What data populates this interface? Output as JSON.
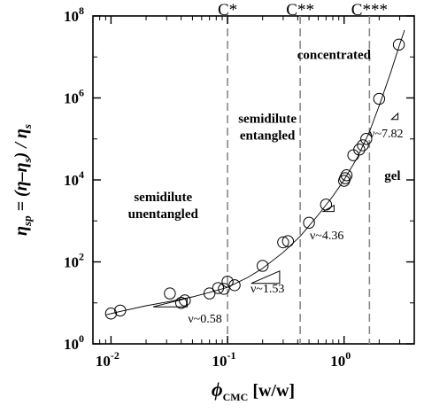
{
  "chart_data": {
    "type": "scatter",
    "x_scale": "log",
    "y_scale": "log",
    "xlim": [
      0.007,
      4
    ],
    "ylim": [
      1,
      100000000
    ],
    "xlabel": {
      "main": "ϕ",
      "sub": "CMC",
      "unit": " [w/w]"
    },
    "ylabel": {
      "part1": "η",
      "part1_sub": "sp",
      "part2": " = (η–η",
      "part2_sub": "s",
      "part3": ") / η",
      "part3_sub": "s"
    },
    "x_ticks": [
      {
        "value": 0.01,
        "base": "10",
        "exp": "-2"
      },
      {
        "value": 0.1,
        "base": "10",
        "exp": "-1"
      },
      {
        "value": 1,
        "base": "10",
        "exp": "0"
      }
    ],
    "y_ticks": [
      {
        "value": 1,
        "base": "10",
        "exp": "0"
      },
      {
        "value": 100,
        "base": "10",
        "exp": "2"
      },
      {
        "value": 10000,
        "base": "10",
        "exp": "4"
      },
      {
        "value": 1000000,
        "base": "10",
        "exp": "6"
      },
      {
        "value": 100000000,
        "base": "10",
        "exp": "8"
      }
    ],
    "critical_lines": [
      {
        "label": "C*",
        "x": 0.1
      },
      {
        "label": "C**",
        "x": 0.42
      },
      {
        "label": "C***",
        "x": 1.65
      }
    ],
    "regions": [
      {
        "lines": [
          "semidilute",
          "unentangled"
        ],
        "x": 0.028,
        "y": 3000,
        "anchor": "middle"
      },
      {
        "lines": [
          "semidilute",
          "entangled"
        ],
        "x": 0.22,
        "y": 250000,
        "anchor": "middle"
      },
      {
        "lines": [
          "concentrated"
        ],
        "x": 0.82,
        "y": 9000000,
        "anchor": "middle"
      },
      {
        "lines": [
          "gel"
        ],
        "x": 2.6,
        "y": 10000,
        "anchor": "middle"
      }
    ],
    "slopes": [
      {
        "label": "ν~0.58",
        "text_x": 0.064,
        "text_y": 3.3,
        "tri": [
          [
            0.045,
            13
          ],
          [
            0.023,
            8
          ],
          [
            0.045,
            8
          ]
        ]
      },
      {
        "label": "ν~1.53",
        "text_x": 0.22,
        "text_y": 18,
        "tri": [
          [
            0.28,
            60
          ],
          [
            0.16,
            30
          ],
          [
            0.28,
            30
          ]
        ]
      },
      {
        "label": "ν~4.36",
        "text_x": 0.71,
        "text_y": 360,
        "tri": [
          [
            0.82,
            2400
          ],
          [
            0.66,
            1700
          ],
          [
            0.82,
            1700
          ]
        ]
      },
      {
        "label": "ν~7.82",
        "text_x": 2.3,
        "text_y": 110000,
        "tri": [
          [
            2.9,
            420000
          ],
          [
            2.55,
            300000
          ],
          [
            2.9,
            300000
          ]
        ]
      }
    ],
    "series": [
      {
        "points": [
          {
            "x": 0.01,
            "y": 5.5
          },
          {
            "x": 0.012,
            "y": 6.5
          },
          {
            "x": 0.032,
            "y": 17
          },
          {
            "x": 0.04,
            "y": 10
          },
          {
            "x": 0.043,
            "y": 11.5
          },
          {
            "x": 0.07,
            "y": 17
          },
          {
            "x": 0.083,
            "y": 23
          },
          {
            "x": 0.093,
            "y": 22
          },
          {
            "x": 0.1,
            "y": 33
          },
          {
            "x": 0.115,
            "y": 27
          },
          {
            "x": 0.2,
            "y": 80
          },
          {
            "x": 0.3,
            "y": 300
          },
          {
            "x": 0.33,
            "y": 320
          },
          {
            "x": 0.5,
            "y": 900
          },
          {
            "x": 0.7,
            "y": 2500
          },
          {
            "x": 1.0,
            "y": 9500
          },
          {
            "x": 1.02,
            "y": 11000
          },
          {
            "x": 1.05,
            "y": 13000
          },
          {
            "x": 1.2,
            "y": 40000
          },
          {
            "x": 1.35,
            "y": 55000
          },
          {
            "x": 1.45,
            "y": 70000
          },
          {
            "x": 1.55,
            "y": 100000
          },
          {
            "x": 2.0,
            "y": 950000
          },
          {
            "x": 2.95,
            "y": 20000000
          }
        ],
        "fit": [
          {
            "x": 0.009,
            "y": 5.1
          },
          {
            "x": 0.012,
            "y": 6.2
          },
          {
            "x": 0.02,
            "y": 8.5
          },
          {
            "x": 0.03,
            "y": 10.5
          },
          {
            "x": 0.05,
            "y": 14
          },
          {
            "x": 0.07,
            "y": 18
          },
          {
            "x": 0.1,
            "y": 24
          },
          {
            "x": 0.15,
            "y": 42
          },
          {
            "x": 0.2,
            "y": 70
          },
          {
            "x": 0.3,
            "y": 170
          },
          {
            "x": 0.42,
            "y": 420
          },
          {
            "x": 0.6,
            "y": 1400
          },
          {
            "x": 0.8,
            "y": 4000
          },
          {
            "x": 1.0,
            "y": 10000
          },
          {
            "x": 1.3,
            "y": 35000
          },
          {
            "x": 1.65,
            "y": 150000
          },
          {
            "x": 2.0,
            "y": 650000
          },
          {
            "x": 2.5,
            "y": 4000000
          },
          {
            "x": 3.0,
            "y": 20000000
          },
          {
            "x": 3.3,
            "y": 45000000
          }
        ]
      }
    ]
  }
}
